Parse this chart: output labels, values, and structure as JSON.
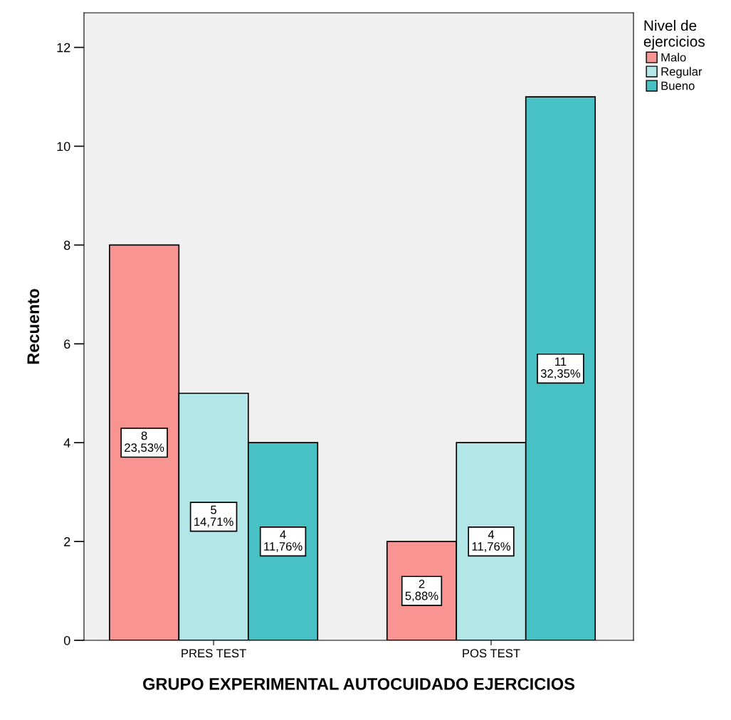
{
  "chart_data": {
    "type": "bar",
    "xlabel": "GRUPO EXPERIMENTAL AUTOCUIDADO EJERCICIOS",
    "ylabel": "Recuento",
    "legend_title": "Nivel de\nejercicios",
    "legend": "right",
    "grid": false,
    "categories": [
      "PRES TEST",
      "POS TEST"
    ],
    "ylim": [
      0,
      12.7
    ],
    "yticks": [
      0,
      2,
      4,
      6,
      8,
      10,
      12
    ],
    "series": [
      {
        "name": "Malo",
        "color": "#f89593",
        "values": [
          8,
          2
        ],
        "value_labels": [
          "8\n23,53%",
          "2\n5,88%"
        ]
      },
      {
        "name": "Regular",
        "color": "#b3e6e6",
        "values": [
          5,
          4
        ],
        "value_labels": [
          "5\n14,71%",
          "4\n11,76%"
        ]
      },
      {
        "name": "Bueno",
        "color": "#47c1c3",
        "values": [
          4,
          11
        ],
        "value_labels": [
          "4\n11,76%",
          "11\n32,35%"
        ]
      }
    ]
  }
}
